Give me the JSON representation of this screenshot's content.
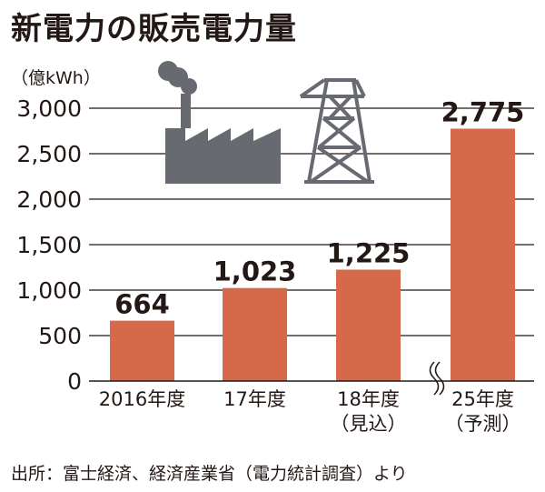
{
  "chart_data": {
    "type": "bar",
    "title": "新電力の販売電力量",
    "unit_label": "（億kWh）",
    "categories": [
      {
        "line1": "2016年度",
        "line2": ""
      },
      {
        "line1": "17年度",
        "line2": ""
      },
      {
        "line1": "18年度",
        "line2": "（見込）"
      },
      {
        "line1": "25年度",
        "line2": "（予測）"
      }
    ],
    "values": [
      664,
      1023,
      1225,
      2775
    ],
    "value_labels": [
      "664",
      "1,023",
      "1,225",
      "2,775"
    ],
    "yticks": [
      {
        "value": 0,
        "label": "0"
      },
      {
        "value": 500,
        "label": "500"
      },
      {
        "value": 1000,
        "label": "1,000"
      },
      {
        "value": 1500,
        "label": "1,500"
      },
      {
        "value": 2000,
        "label": "2,000"
      },
      {
        "value": 2500,
        "label": "2,500"
      },
      {
        "value": 3000,
        "label": "3,000"
      }
    ],
    "ylim": [
      0,
      3000
    ],
    "grid": true,
    "axis_break_before_last": true,
    "bar_color": "#d5694a",
    "icons": [
      "factory-icon",
      "power-tower-icon"
    ],
    "source": "出所：富士経済、経済産業省（電力統計調査）より"
  }
}
